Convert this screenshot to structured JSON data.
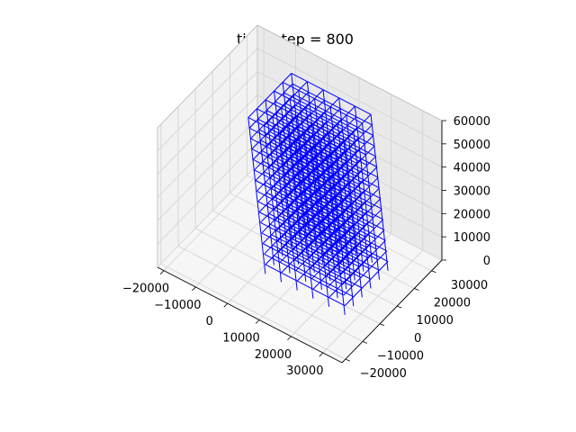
{
  "chart_data": {
    "type": "3d-wireframe",
    "title": "time step = 800",
    "xlabel": "",
    "ylabel": "",
    "zlabel": "",
    "x_ticks": [
      "−20000",
      "−10000",
      "0",
      "10000",
      "20000",
      "30000"
    ],
    "y_ticks": [
      "−20000",
      "−10000",
      "0",
      "10000",
      "20000",
      "30000"
    ],
    "z_ticks": [
      "0",
      "10000",
      "20000",
      "30000",
      "40000",
      "50000",
      "60000"
    ],
    "xlim": [
      -22000,
      36000
    ],
    "ylim": [
      -22000,
      36000
    ],
    "zlim": [
      0,
      60000
    ],
    "grid": true,
    "structure": {
      "color": "#0000ff",
      "x_columns": [
        0,
        5000,
        10000,
        15000,
        20000,
        25000
      ],
      "y_columns": [
        0,
        5000,
        10000,
        15000,
        20000,
        25000
      ],
      "floor_elevations": [
        0,
        4000,
        8000,
        12000,
        16000,
        20000,
        24000,
        28000,
        32000,
        36000,
        40000,
        44000,
        48000,
        52000,
        56000
      ],
      "base_level": -4000,
      "roof_drift_x": -7000,
      "roof_drift_y": 3000
    }
  }
}
